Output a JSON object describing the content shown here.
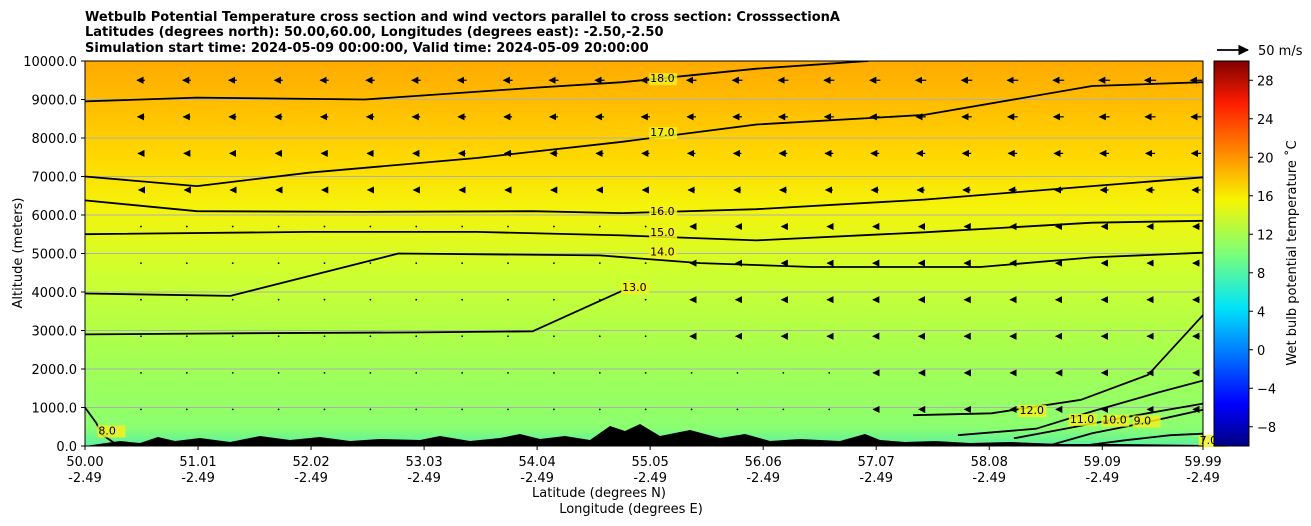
{
  "chart_data": {
    "type": "heatmap",
    "title_lines": [
      "Wetbulb Potential Temperature cross section and wind vectors parallel to cross section: CrosssectionA",
      "Latitudes (degrees north): 50.00,60.00, Longitudes (degrees east): -2.50,-2.50",
      "Simulation start time: 2024-05-09 00:00:00, Valid time: 2024-05-09 20:00:00"
    ],
    "xlabel_lat": "Latitude (degrees N)",
    "xlabel_lon": "Longitude (degrees E)",
    "ylabel": "Altitude (meters)",
    "xlim": [
      50.0,
      59.99
    ],
    "ylim": [
      0,
      10000
    ],
    "x_ticks": [
      {
        "lat": "50.00",
        "lon": "-2.49",
        "pos": 50.0
      },
      {
        "lat": "51.01",
        "lon": "-2.49",
        "pos": 51.01
      },
      {
        "lat": "52.02",
        "lon": "-2.49",
        "pos": 52.02
      },
      {
        "lat": "53.03",
        "lon": "-2.49",
        "pos": 53.03
      },
      {
        "lat": "54.04",
        "lon": "-2.49",
        "pos": 54.04
      },
      {
        "lat": "55.05",
        "lon": "-2.49",
        "pos": 55.05
      },
      {
        "lat": "56.06",
        "lon": "-2.49",
        "pos": 56.06
      },
      {
        "lat": "57.07",
        "lon": "-2.49",
        "pos": 57.07
      },
      {
        "lat": "58.08",
        "lon": "-2.49",
        "pos": 58.08
      },
      {
        "lat": "59.09",
        "lon": "-2.49",
        "pos": 59.09
      },
      {
        "lat": "59.99",
        "lon": "-2.49",
        "pos": 59.99
      }
    ],
    "y_ticks": [
      "0.0",
      "1000.0",
      "2000.0",
      "3000.0",
      "4000.0",
      "5000.0",
      "6000.0",
      "7000.0",
      "8000.0",
      "9000.0",
      "10000.0"
    ],
    "y_tick_values": [
      0,
      1000,
      2000,
      3000,
      4000,
      5000,
      6000,
      7000,
      8000,
      9000,
      10000
    ],
    "colorbar": {
      "label": "Wet bulb potential temperature ˚C",
      "ticks": [
        "−8",
        "−4",
        "0",
        "4",
        "8",
        "12",
        "16",
        "20",
        "24",
        "28"
      ],
      "tick_values": [
        -8,
        -4,
        0,
        4,
        8,
        12,
        16,
        20,
        24,
        28
      ],
      "range": [
        -10,
        30
      ]
    },
    "quiver_key_label": "50 m/s",
    "contours": [
      {
        "level": 7.0,
        "label": "7.0",
        "label_at": [
          59.96,
          50
        ],
        "points": [
          [
            58.9,
            0
          ],
          [
            59.3,
            150
          ],
          [
            59.7,
            280
          ],
          [
            59.99,
            320
          ]
        ]
      },
      {
        "level": 8.0,
        "label": "8.0",
        "label_at": [
          50.12,
          300
        ],
        "points": [
          [
            50.0,
            1000
          ],
          [
            50.1,
            600
          ],
          [
            50.15,
            300
          ],
          [
            50.3,
            0
          ]
        ]
      },
      {
        "level": 9.0,
        "label": "9.0",
        "label_at": [
          59.37,
          560
        ],
        "points": [
          [
            58.6,
            0
          ],
          [
            59.0,
            330
          ],
          [
            59.4,
            560
          ],
          [
            59.99,
            940
          ]
        ]
      },
      {
        "level": 10.0,
        "label": "10.0",
        "label_at": [
          59.09,
          580
        ],
        "points": [
          [
            58.3,
            200
          ],
          [
            58.8,
            470
          ],
          [
            59.3,
            750
          ],
          [
            59.99,
            1100
          ]
        ]
      },
      {
        "level": 11.0,
        "label": "11.0",
        "label_at": [
          58.8,
          600
        ],
        "points": [
          [
            57.8,
            280
          ],
          [
            58.5,
            450
          ],
          [
            59.0,
            900
          ],
          [
            59.6,
            1400
          ],
          [
            59.99,
            1700
          ]
        ]
      },
      {
        "level": 12.0,
        "label": "12.0",
        "label_at": [
          58.35,
          830
        ],
        "points": [
          [
            57.4,
            800
          ],
          [
            58.1,
            850
          ],
          [
            58.9,
            1200
          ],
          [
            59.5,
            1850
          ],
          [
            59.99,
            3400
          ]
        ]
      },
      {
        "level": 13.0,
        "label": "13.0",
        "label_at": [
          54.8,
          4030
        ],
        "points": [
          [
            50.0,
            2900
          ],
          [
            51.5,
            2930
          ],
          [
            53.0,
            2950
          ],
          [
            54.0,
            2980
          ],
          [
            54.8,
            4030
          ]
        ]
      },
      {
        "level": 14.0,
        "label": "14.0",
        "label_at": [
          55.05,
          4950
        ],
        "points": [
          [
            50.0,
            3960
          ],
          [
            51.3,
            3900
          ],
          [
            52.8,
            5000
          ],
          [
            54.6,
            4950
          ],
          [
            55.5,
            4750
          ],
          [
            56.5,
            4650
          ],
          [
            58.0,
            4650
          ],
          [
            59.0,
            4900
          ],
          [
            59.99,
            5020
          ]
        ]
      },
      {
        "level": 15.0,
        "label": "15.0",
        "label_at": [
          55.05,
          5450
        ],
        "points": [
          [
            50.0,
            5500
          ],
          [
            52.0,
            5560
          ],
          [
            53.5,
            5560
          ],
          [
            54.8,
            5470
          ],
          [
            56.0,
            5340
          ],
          [
            57.5,
            5550
          ],
          [
            59.0,
            5800
          ],
          [
            59.99,
            5850
          ]
        ]
      },
      {
        "level": 16.0,
        "label": "16.0",
        "label_at": [
          55.05,
          6000
        ],
        "points": [
          [
            50.0,
            6380
          ],
          [
            51.0,
            6100
          ],
          [
            52.5,
            6080
          ],
          [
            54.0,
            6100
          ],
          [
            54.8,
            6050
          ],
          [
            56.0,
            6150
          ],
          [
            57.5,
            6400
          ],
          [
            59.0,
            6750
          ],
          [
            59.99,
            6980
          ]
        ]
      },
      {
        "level": 17.0,
        "label": "17.0",
        "label_at": [
          55.05,
          8050
        ],
        "points": [
          [
            50.0,
            7000
          ],
          [
            51.0,
            6750
          ],
          [
            52.0,
            7100
          ],
          [
            53.5,
            7480
          ],
          [
            54.8,
            7900
          ],
          [
            56.0,
            8350
          ],
          [
            57.5,
            8600
          ],
          [
            59.0,
            9350
          ],
          [
            59.99,
            9450
          ]
        ]
      },
      {
        "level": 18.0,
        "label": "18.0",
        "label_at": [
          55.05,
          9450
        ],
        "points": [
          [
            50.0,
            8950
          ],
          [
            51.0,
            9050
          ],
          [
            52.5,
            9000
          ],
          [
            54.0,
            9300
          ],
          [
            54.8,
            9450
          ],
          [
            56.0,
            9800
          ],
          [
            57.0,
            10000
          ]
        ]
      }
    ]
  }
}
